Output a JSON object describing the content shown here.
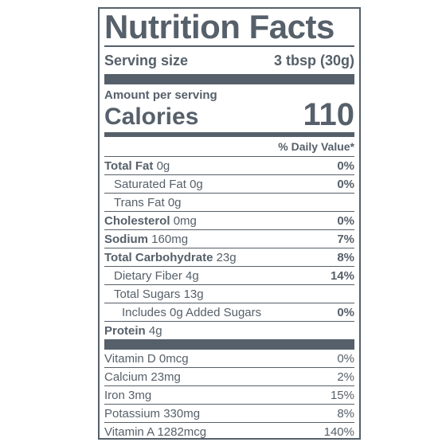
{
  "label": {
    "title": "Nutrition Facts",
    "serving_size_label": "Serving size",
    "serving_size_value": "3 tbsp (30g)",
    "amount_per_serving": "Amount per serving",
    "calories_label": "Calories",
    "calories_value": "110",
    "daily_value_header": "% Daily Value*",
    "nutrients": [
      {
        "name": "Total Fat",
        "amount": "0g",
        "dv": "0%"
      },
      {
        "name": "Saturated Fat",
        "amount": "0g",
        "dv": "0%"
      },
      {
        "name": "Trans Fat",
        "amount": "0g",
        "dv": ""
      },
      {
        "name": "Cholesterol",
        "amount": "0mg",
        "dv": "0%"
      },
      {
        "name": "Sodium",
        "amount": "160mg",
        "dv": "7%"
      },
      {
        "name": "Total Carbohydrate",
        "amount": "23g",
        "dv": "8%"
      },
      {
        "name": "Dietary Fiber",
        "amount": "4g",
        "dv": "14%"
      },
      {
        "name": "Total Sugars",
        "amount": "13g",
        "dv": ""
      },
      {
        "name": "Includes 0g Added Sugars",
        "amount": "",
        "dv": "0%"
      },
      {
        "name": "Protein",
        "amount": "4g",
        "dv": ""
      }
    ],
    "vitamins": [
      {
        "name": "Vitamin D",
        "amount": "0mcg",
        "dv": "0%"
      },
      {
        "name": "Calcium",
        "amount": "23mg",
        "dv": "2%"
      },
      {
        "name": "Iron",
        "amount": "3mg",
        "dv": "15%"
      },
      {
        "name": "Potassium",
        "amount": "330mg",
        "dv": "8%"
      },
      {
        "name": "Vitamin A",
        "amount": "1282mcg",
        "dv": "140%"
      }
    ]
  }
}
